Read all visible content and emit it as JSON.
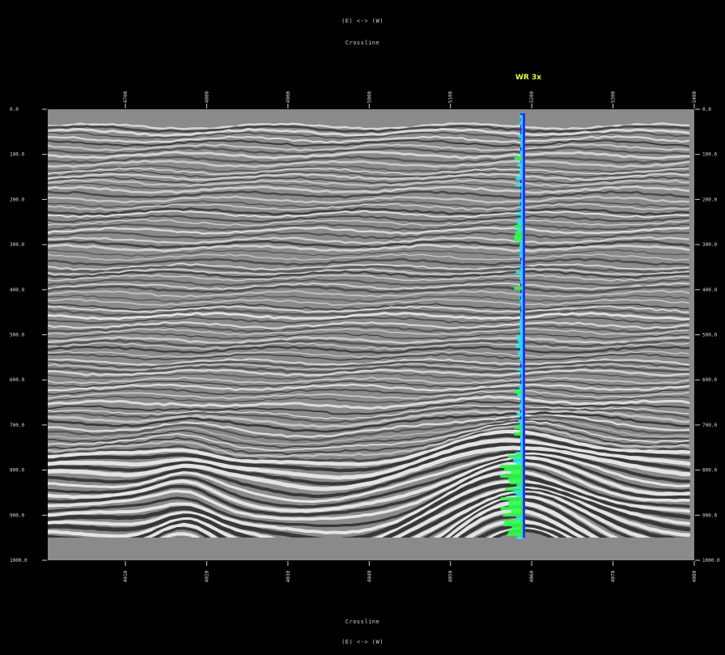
{
  "header": {
    "direction": "(E) <-> (W)",
    "axis_name": "Crossline"
  },
  "footer": {
    "axis_name": "Crossline",
    "direction": "(E) <-> (W)"
  },
  "well": {
    "name": "WR 3x"
  },
  "axes": {
    "time_ticks": [
      "0.0",
      "100.0",
      "200.0",
      "300.0",
      "400.0",
      "500.0",
      "600.0",
      "700.0",
      "800.0",
      "900.0",
      "1000.0"
    ],
    "top_ticks": [
      "4700",
      "4800",
      "4900",
      "5000",
      "5100",
      "5200",
      "5300",
      "5400"
    ],
    "bottom_ticks": [
      "4010",
      "4020",
      "4030",
      "4040",
      "4050",
      "4060",
      "4070",
      "4080"
    ]
  },
  "colors": {
    "background": "#000000",
    "padding": "#8a8a8a",
    "well_track": "#2233ff",
    "log_high": "#29e8f0",
    "log_peak": "#2cff4a",
    "label": "#e8ff3a"
  }
}
